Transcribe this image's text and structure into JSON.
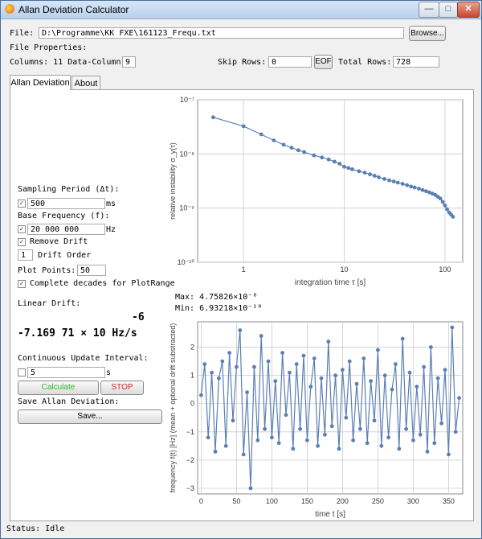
{
  "window": {
    "title": "Allan Deviation Calculator",
    "minimize": "—",
    "maximize": "□",
    "close": "✕"
  },
  "file": {
    "label": "File:",
    "path": "D:\\Programme\\KK FXE\\161123_Frequ.txt",
    "browse": "Browse...",
    "properties_label": "File Properties:"
  },
  "columns": {
    "text": "Columns: 11 Data-Column:",
    "data_column": "9"
  },
  "skip_rows": {
    "label": "Skip Rows:",
    "value": "0",
    "eof": "EOF"
  },
  "total_rows": {
    "label": "Total Rows:",
    "value": "728"
  },
  "tabs": [
    {
      "label": "Allan Deviation"
    },
    {
      "label": "About"
    }
  ],
  "controls": {
    "sampling_label": "Sampling Period (Δt):",
    "sampling_value": "500",
    "sampling_unit": "ms",
    "base_freq_label": "Base Frequency (f):",
    "base_freq_value": "20 000 000",
    "base_freq_unit": "Hz",
    "remove_drift": "Remove Drift",
    "drift_order_value": "1",
    "drift_order_label": "Drift Order",
    "plot_points_label": "Plot Points:",
    "plot_points_value": "50",
    "complete_decades": "Complete decades for PlotRange",
    "check_mark": "✓"
  },
  "drift": {
    "label": "Linear Drift:",
    "exponent": "-6",
    "value": "-7.169 71 × 10 Hz/s"
  },
  "update": {
    "label": "Continuous Update Interval:",
    "value": "5",
    "unit": "s"
  },
  "buttons": {
    "calculate": "Calculate",
    "stop": "STOP",
    "save_label": "Save Allan Deviation:",
    "save": "Save..."
  },
  "stats": {
    "max": "Max: 4.75826×10⁻⁸",
    "min": "Min: 6.93218×10⁻¹⁰"
  },
  "status": "Status: Idle",
  "colors": {
    "series": "#5b7fb4",
    "calculate": "#2fb82f",
    "stop": "#d42a2a"
  },
  "chart_data": [
    {
      "type": "line",
      "xscale": "log",
      "yscale": "log",
      "xlabel": "integration time τ [s]",
      "ylabel": "relative instability σ_y(τ)",
      "xlim": [
        0.35,
        150
      ],
      "ylim": [
        1e-10,
        1e-07
      ],
      "x_ticks": [
        "1",
        "10",
        "100"
      ],
      "y_ticks": [
        "10⁻¹⁰",
        "10⁻⁹",
        "10⁻⁸",
        "10⁻⁷"
      ],
      "grid": true,
      "series": [
        {
          "x": [
            0.5,
            1,
            1.5,
            2,
            2.5,
            3,
            3.5,
            4,
            5,
            6,
            7,
            8,
            9,
            10,
            11,
            12,
            14,
            16,
            18,
            20,
            22,
            25,
            28,
            31,
            34,
            38,
            42,
            46,
            50,
            55,
            60,
            65,
            70,
            75,
            80,
            85,
            90,
            95,
            100,
            105,
            110,
            115,
            120
          ],
          "y": [
            4.75e-08,
            3.25e-08,
            2.3e-08,
            1.78e-08,
            1.48e-08,
            1.3e-08,
            1.17e-08,
            1.08e-08,
            9.4e-09,
            8.6e-09,
            7.9e-09,
            7.2e-09,
            6.6e-09,
            5.8e-09,
            5.5e-09,
            5.2e-09,
            4.8e-09,
            4.5e-09,
            4.2e-09,
            3.95e-09,
            3.7e-09,
            3.45e-09,
            3.25e-09,
            3.1e-09,
            2.95e-09,
            2.8e-09,
            2.65e-09,
            2.5e-09,
            2.4e-09,
            2.28e-09,
            2.15e-09,
            2.05e-09,
            1.95e-09,
            1.85e-09,
            1.75e-09,
            1.62e-09,
            1.5e-09,
            1.3e-09,
            1.12e-09,
            9.5e-10,
            8.3e-10,
            7.6e-10,
            6.93e-10
          ]
        }
      ]
    },
    {
      "type": "line",
      "xlabel": "time t [s]",
      "ylabel": "frequency f(t) [Hz] (mean + optional drift substracted)",
      "xlim": [
        -5,
        370
      ],
      "ylim": [
        -3.2,
        2.9
      ],
      "x_ticks": [
        "0",
        "50",
        "100",
        "150",
        "200",
        "250",
        "300",
        "350"
      ],
      "y_ticks": [
        "−3",
        "−2",
        "−1",
        "0",
        "1",
        "2"
      ],
      "grid": true,
      "series": [
        {
          "x": [
            0,
            5,
            10,
            15,
            20,
            25,
            30,
            35,
            40,
            45,
            50,
            55,
            60,
            65,
            70,
            75,
            80,
            85,
            90,
            95,
            100,
            105,
            110,
            115,
            120,
            125,
            130,
            135,
            140,
            145,
            150,
            155,
            160,
            165,
            170,
            175,
            180,
            185,
            190,
            195,
            200,
            205,
            210,
            215,
            220,
            225,
            230,
            235,
            240,
            245,
            250,
            255,
            260,
            265,
            270,
            275,
            280,
            285,
            290,
            295,
            300,
            305,
            310,
            315,
            320,
            325,
            330,
            335,
            340,
            345,
            350,
            355,
            360,
            365
          ],
          "y": [
            0.3,
            1.4,
            -1.2,
            1.1,
            -1.7,
            0.9,
            1.5,
            -1.5,
            1.8,
            -0.6,
            1.3,
            2.6,
            -1.8,
            0.4,
            -3.0,
            1.3,
            -1.3,
            2.4,
            -0.9,
            1.5,
            -1.2,
            0.8,
            -1.4,
            1.8,
            -0.4,
            1.1,
            -1.6,
            1.4,
            -0.9,
            1.7,
            -1.3,
            0.6,
            1.6,
            -1.5,
            0.9,
            -1.1,
            2.2,
            -0.8,
            1.0,
            -1.6,
            1.2,
            -0.5,
            1.5,
            -1.3,
            0.7,
            -0.9,
            1.6,
            -1.4,
            0.8,
            -0.6,
            1.9,
            -1.5,
            1.0,
            -1.2,
            0.5,
            1.4,
            -1.6,
            2.3,
            -0.9,
            1.1,
            -1.3,
            0.6,
            -1.1,
            1.3,
            -1.7,
            2.0,
            -1.4,
            0.9,
            -0.7,
            1.2,
            -1.8,
            2.7,
            -1.0,
            0.2
          ]
        }
      ]
    }
  ]
}
